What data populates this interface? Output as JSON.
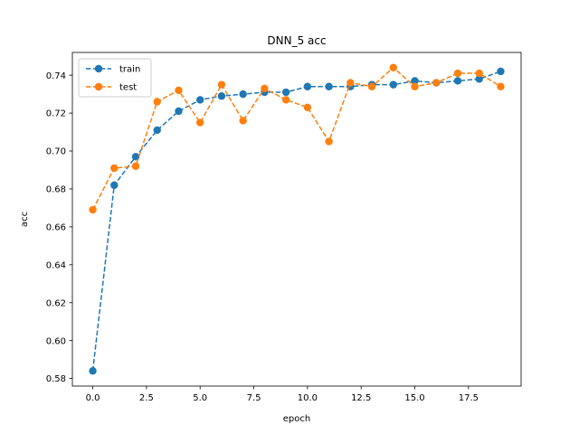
{
  "chart_data": {
    "type": "line",
    "title": "DNN_5 acc",
    "xlabel": "epoch",
    "ylabel": "acc",
    "xlim": [
      -0.95,
      19.95
    ],
    "ylim": [
      0.576,
      0.752
    ],
    "xticks": [
      0.0,
      2.5,
      5.0,
      7.5,
      10.0,
      12.5,
      15.0,
      17.5
    ],
    "xtick_labels": [
      "0.0",
      "2.5",
      "5.0",
      "7.5",
      "10.0",
      "12.5",
      "15.0",
      "17.5"
    ],
    "yticks": [
      0.58,
      0.6,
      0.62,
      0.64,
      0.66,
      0.68,
      0.7,
      0.72,
      0.74
    ],
    "ytick_labels": [
      "0.58",
      "0.60",
      "0.62",
      "0.64",
      "0.66",
      "0.68",
      "0.70",
      "0.72",
      "0.74"
    ],
    "grid": false,
    "legend_position": "top-left",
    "x": [
      0,
      1,
      2,
      3,
      4,
      5,
      6,
      7,
      8,
      9,
      10,
      11,
      12,
      13,
      14,
      15,
      16,
      17,
      18,
      19
    ],
    "series": [
      {
        "name": "train",
        "color": "#1f77b4",
        "values": [
          0.584,
          0.682,
          0.697,
          0.711,
          0.721,
          0.727,
          0.729,
          0.73,
          0.731,
          0.731,
          0.734,
          0.734,
          0.734,
          0.735,
          0.735,
          0.737,
          0.736,
          0.737,
          0.738,
          0.742
        ]
      },
      {
        "name": "test",
        "color": "#ff7f0e",
        "values": [
          0.669,
          0.691,
          0.692,
          0.726,
          0.732,
          0.715,
          0.735,
          0.716,
          0.733,
          0.727,
          0.723,
          0.705,
          0.736,
          0.734,
          0.744,
          0.734,
          0.736,
          0.741,
          0.741,
          0.734
        ]
      }
    ]
  }
}
